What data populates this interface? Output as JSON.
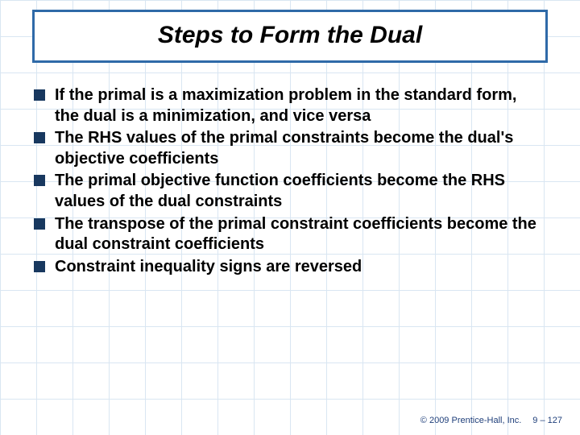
{
  "title": "Steps to Form the Dual",
  "title_border_color": "#2f6aa8",
  "bullet_marker_color": "#18385f",
  "bullets": [
    "If the primal is a maximization problem in the standard form, the dual is a minimization, and vice versa",
    "The RHS values of the primal constraints become the dual's objective coefficients",
    "The primal objective function coefficients become the RHS values of the dual constraints",
    "The transpose of the primal constraint coefficients become the dual constraint coefficients",
    "Constraint inequality signs are reversed"
  ],
  "footer": {
    "copyright": "© 2009 Prentice-Hall, Inc.",
    "page": "9 – 127"
  },
  "colors": {
    "grid": "#d9e6f2",
    "text": "#000000",
    "footer_text": "#1f3f7a"
  }
}
